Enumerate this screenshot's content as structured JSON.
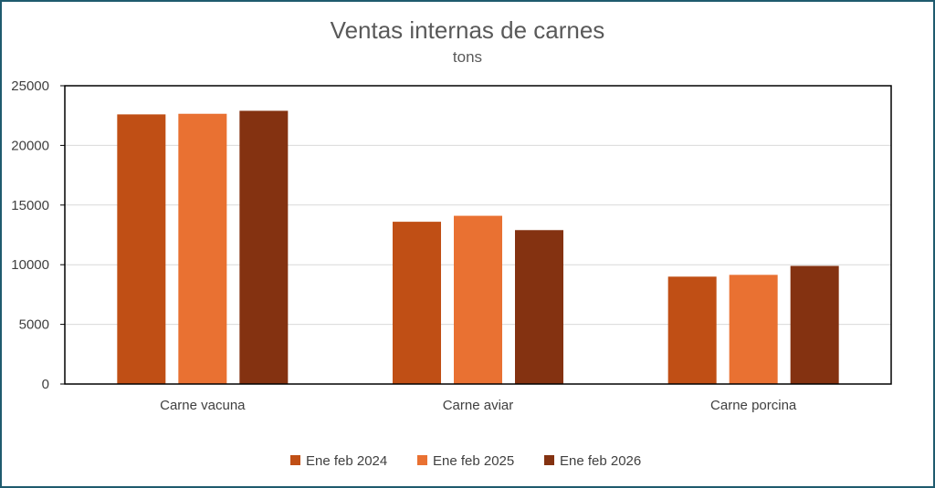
{
  "chart_data": {
    "type": "bar",
    "title": "Ventas internas de carnes",
    "subtitle": "tons",
    "categories": [
      "Carne vacuna",
      "Carne aviar",
      "Carne porcina"
    ],
    "series": [
      {
        "name": "Ene feb 2024",
        "color": "#c04f15",
        "values": [
          22600,
          13600,
          9000
        ]
      },
      {
        "name": "Ene feb 2025",
        "color": "#e97132",
        "values": [
          22650,
          14100,
          9150
        ]
      },
      {
        "name": "Ene feb 2026",
        "color": "#843211",
        "values": [
          22900,
          12900,
          9900
        ]
      }
    ],
    "ylim": [
      0,
      25000
    ],
    "yticks": [
      0,
      5000,
      10000,
      15000,
      20000,
      25000
    ],
    "grid": true,
    "legend": "bottom"
  }
}
